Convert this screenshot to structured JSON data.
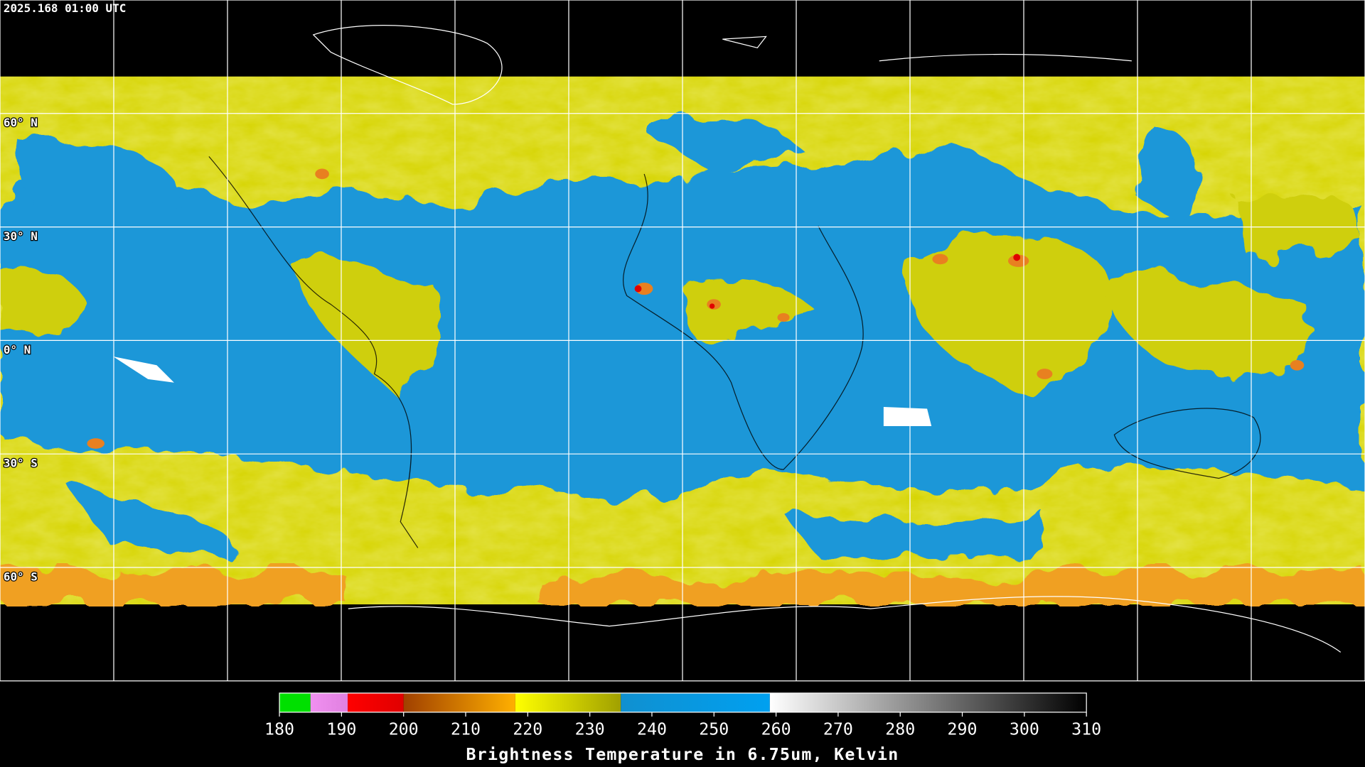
{
  "timestamp": "2025.168 01:00 UTC",
  "lat_labels": [
    "60° N",
    "30° N",
    "0° N",
    "30° S",
    "60° S"
  ],
  "colorbar": {
    "title": "Brightness Temperature in 6.75um, Kelvin",
    "lim": [
      180,
      310
    ],
    "ticks": [
      180,
      190,
      200,
      210,
      220,
      230,
      240,
      250,
      260,
      270,
      280,
      290,
      300,
      310
    ],
    "segments": [
      {
        "from": 180,
        "to": 185,
        "colors": [
          "#00e000",
          "#00e000"
        ]
      },
      {
        "from": 185,
        "to": 191,
        "colors": [
          "#f090f0",
          "#e080e0"
        ]
      },
      {
        "from": 191,
        "to": 200,
        "colors": [
          "#ff0000",
          "#e00000"
        ]
      },
      {
        "from": 200,
        "to": 218,
        "colors": [
          "#a04000",
          "#ffb000"
        ]
      },
      {
        "from": 218,
        "to": 235,
        "colors": [
          "#ffff00",
          "#a0a000"
        ]
      },
      {
        "from": 235,
        "to": 259,
        "colors": [
          "#1090d0",
          "#00a0f0"
        ]
      },
      {
        "from": 259,
        "to": 310,
        "colors": [
          "#ffffff",
          "#000000"
        ]
      }
    ]
  }
}
